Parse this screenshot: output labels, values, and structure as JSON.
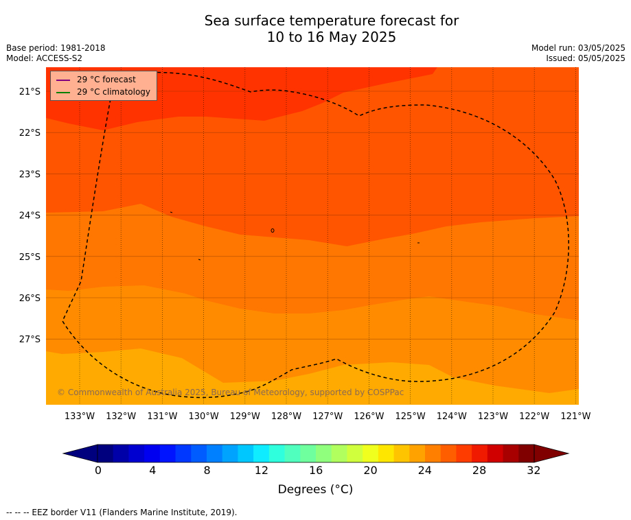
{
  "title": {
    "line1": "Sea surface temperature forecast for",
    "line2": "10 to 16 May 2025"
  },
  "meta": {
    "base_period": "Base period: 1981-2018",
    "model": "Model: ACCESS-S2",
    "model_run": "Model run: 03/05/2025",
    "issued": "Issued: 05/05/2025"
  },
  "legend": {
    "forecast": "29 °C  forecast",
    "climatology": "29 °C  climatology",
    "forecast_color": "#800080",
    "climatology_color": "#008000"
  },
  "copyright": "© Commonwealth of Australia 2025, Bureau of Meteorology, supported by COSPPac",
  "axes": {
    "lat_labels": [
      "21°S",
      "22°S",
      "23°S",
      "24°S",
      "25°S",
      "26°S",
      "27°S"
    ],
    "lon_labels": [
      "133°W",
      "132°W",
      "131°W",
      "130°W",
      "129°W",
      "128°W",
      "127°W",
      "126°W",
      "125°W",
      "124°W",
      "123°W",
      "122°W",
      "121°W"
    ]
  },
  "colorbar": {
    "ticks": [
      "0",
      "4",
      "8",
      "12",
      "16",
      "20",
      "24",
      "28",
      "32"
    ],
    "title": "Degrees (°C)",
    "colors": [
      "#00007f",
      "#0000a8",
      "#0000d0",
      "#0000f0",
      "#0014ff",
      "#0038ff",
      "#005cff",
      "#0080ff",
      "#00a4ff",
      "#00c8ff",
      "#10ecff",
      "#30ffde",
      "#50ffbe",
      "#70ff9e",
      "#90ff7e",
      "#b0ff5e",
      "#d0ff3e",
      "#f0ff1e",
      "#ffe600",
      "#ffc400",
      "#ffa200",
      "#ff8000",
      "#ff5e00",
      "#ff3c00",
      "#f01a00",
      "#d00000",
      "#a80000",
      "#800000"
    ]
  },
  "footer": "--  --  -- EEZ border V11 (Flanders Marine Institute, 2019).",
  "colors": {
    "band_hot": "#ff3300",
    "band_warm": "#ff5500",
    "band_mid": "#ff7700",
    "band_mild": "#ff8c00",
    "band_cool": "#ffaa00"
  }
}
